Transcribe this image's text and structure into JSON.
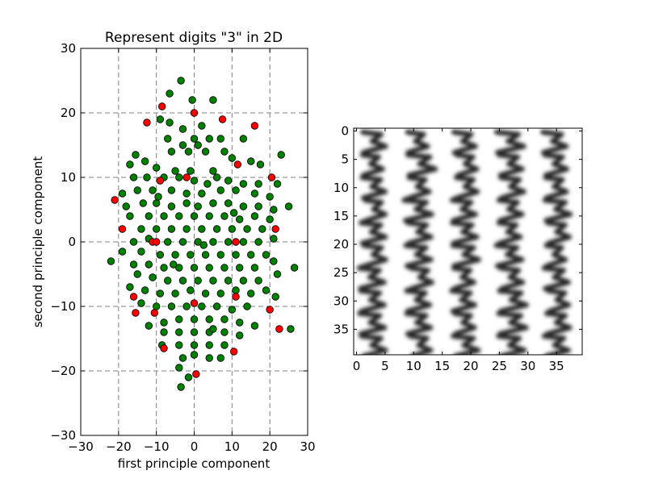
{
  "chart_data": [
    {
      "type": "scatter",
      "title": "Represent digits \"3\" in 2D",
      "xlabel": "first principle component",
      "ylabel": "second principle component",
      "xlim": [
        -30,
        30
      ],
      "ylim": [
        -30,
        30
      ],
      "xticks": [
        "−30",
        "−20",
        "−10",
        "0",
        "10",
        "20",
        "30"
      ],
      "yticks": [
        "−30",
        "−20",
        "−10",
        "0",
        "10",
        "20",
        "30"
      ],
      "grid": true,
      "colors": {
        "green": "#008000",
        "red": "#ff0000",
        "grid": "#808080"
      },
      "red_points": [
        [
          -8.5,
          21
        ],
        [
          0,
          20
        ],
        [
          7.5,
          19
        ],
        [
          -12.5,
          18.5
        ],
        [
          16,
          18
        ],
        [
          -21,
          6.5
        ],
        [
          -19,
          2
        ],
        [
          -9,
          9.5
        ],
        [
          -2,
          10
        ],
        [
          11.5,
          12
        ],
        [
          20.5,
          10
        ],
        [
          21.5,
          2
        ],
        [
          -11,
          0
        ],
        [
          -10,
          0
        ],
        [
          11,
          0
        ],
        [
          -16,
          -8.5
        ],
        [
          -15.5,
          -11
        ],
        [
          -10.5,
          -11
        ],
        [
          -8,
          -16.5
        ],
        [
          0,
          -9.5
        ],
        [
          11,
          -8.5
        ],
        [
          20,
          -10.5
        ],
        [
          22.5,
          -13.5
        ],
        [
          10.5,
          -17
        ],
        [
          0.5,
          -20.5
        ]
      ],
      "green_points": [
        [
          -6.5,
          23
        ],
        [
          -3.5,
          25
        ],
        [
          5,
          22
        ],
        [
          -0.5,
          22
        ],
        [
          2,
          18
        ],
        [
          -9,
          19
        ],
        [
          -6.5,
          18.5
        ],
        [
          -3,
          17.5
        ],
        [
          -7,
          16
        ],
        [
          0,
          16
        ],
        [
          4,
          16
        ],
        [
          7,
          16
        ],
        [
          13,
          16
        ],
        [
          1,
          15
        ],
        [
          -3,
          15
        ],
        [
          -1.5,
          14
        ],
        [
          -6,
          14
        ],
        [
          3,
          14
        ],
        [
          8,
          14
        ],
        [
          -15.5,
          13.5
        ],
        [
          -13,
          12.5
        ],
        [
          -17,
          12
        ],
        [
          -10,
          11.5
        ],
        [
          -5,
          11
        ],
        [
          -1,
          11
        ],
        [
          5,
          11
        ],
        [
          10,
          13
        ],
        [
          15,
          12.5
        ],
        [
          17.5,
          12
        ],
        [
          23,
          13.5
        ],
        [
          -16,
          10
        ],
        [
          -12.5,
          10
        ],
        [
          -8,
          10
        ],
        [
          -4,
          10
        ],
        [
          0,
          9.5
        ],
        [
          6,
          10
        ],
        [
          9,
          9.5
        ],
        [
          13,
          9
        ],
        [
          17,
          9
        ],
        [
          22,
          9
        ],
        [
          -19,
          7.5
        ],
        [
          -15,
          8
        ],
        [
          -11,
          8
        ],
        [
          -6,
          8
        ],
        [
          -2,
          7.5
        ],
        [
          2,
          7.5
        ],
        [
          7,
          8
        ],
        [
          11,
          8
        ],
        [
          16,
          7.5
        ],
        [
          20,
          7
        ],
        [
          -18,
          5.5
        ],
        [
          -13.5,
          6
        ],
        [
          -10,
          6
        ],
        [
          -6,
          5.5
        ],
        [
          -2,
          6
        ],
        [
          1,
          5.5
        ],
        [
          5,
          6
        ],
        [
          9,
          6
        ],
        [
          13,
          5.5
        ],
        [
          17,
          5.5
        ],
        [
          21,
          5
        ],
        [
          25,
          5.5
        ],
        [
          -17,
          4
        ],
        [
          -12,
          4
        ],
        [
          -8,
          4
        ],
        [
          -4,
          4
        ],
        [
          0,
          4
        ],
        [
          4,
          4
        ],
        [
          8,
          4
        ],
        [
          12,
          3.5
        ],
        [
          16,
          4
        ],
        [
          20,
          3.5
        ],
        [
          -14,
          2
        ],
        [
          -10,
          2
        ],
        [
          -6,
          2
        ],
        [
          -2,
          2
        ],
        [
          2,
          2
        ],
        [
          6,
          2
        ],
        [
          10,
          2
        ],
        [
          14,
          2
        ],
        [
          18,
          2
        ],
        [
          -16,
          0
        ],
        [
          -12,
          0.5
        ],
        [
          -7,
          0
        ],
        [
          -3,
          0
        ],
        [
          1,
          0
        ],
        [
          5,
          0
        ],
        [
          9,
          0
        ],
        [
          13,
          0
        ],
        [
          17,
          0
        ],
        [
          21,
          0.5
        ],
        [
          -19,
          -1.5
        ],
        [
          -14,
          -1.5
        ],
        [
          -9,
          -2
        ],
        [
          -5,
          -2
        ],
        [
          -1,
          -2
        ],
        [
          3,
          -2
        ],
        [
          7,
          -2
        ],
        [
          11,
          -2
        ],
        [
          15,
          -2
        ],
        [
          19,
          -2
        ],
        [
          -22,
          -3
        ],
        [
          -16,
          -3.5
        ],
        [
          -12,
          -3.5
        ],
        [
          -8,
          -4
        ],
        [
          -4,
          -4
        ],
        [
          0,
          -4
        ],
        [
          4,
          -4
        ],
        [
          8,
          -4
        ],
        [
          12,
          -4
        ],
        [
          16,
          -4
        ],
        [
          21,
          -3
        ],
        [
          -15,
          -5
        ],
        [
          -11,
          -5.5
        ],
        [
          -7,
          -6
        ],
        [
          -3,
          -6
        ],
        [
          1,
          -6
        ],
        [
          5,
          -6
        ],
        [
          9,
          -6
        ],
        [
          13,
          -6
        ],
        [
          17,
          -6
        ],
        [
          22,
          -5
        ],
        [
          26.5,
          -4
        ],
        [
          -17,
          -7
        ],
        [
          -13,
          -7.5
        ],
        [
          -9,
          -8
        ],
        [
          -5,
          -8
        ],
        [
          -1,
          -7.5
        ],
        [
          3,
          -8
        ],
        [
          7,
          -8
        ],
        [
          11,
          -7.5
        ],
        [
          15,
          -8
        ],
        [
          19,
          -7.5
        ],
        [
          -14,
          -9.5
        ],
        [
          -10,
          -10
        ],
        [
          -6,
          -10
        ],
        [
          -2,
          -10
        ],
        [
          2,
          -10
        ],
        [
          6,
          -10
        ],
        [
          10,
          -10.5
        ],
        [
          14,
          -10
        ],
        [
          21.5,
          -8.5
        ],
        [
          -12,
          -13
        ],
        [
          -8,
          -12.5
        ],
        [
          -4,
          -12
        ],
        [
          0,
          -12
        ],
        [
          4,
          -12
        ],
        [
          8,
          -12
        ],
        [
          12,
          -12.5
        ],
        [
          16,
          -13
        ],
        [
          -8,
          -14
        ],
        [
          -4,
          -14
        ],
        [
          0,
          -14
        ],
        [
          4,
          -14
        ],
        [
          8,
          -14
        ],
        [
          12,
          -14.5
        ],
        [
          -8.5,
          -16
        ],
        [
          -4,
          -16
        ],
        [
          0,
          -16
        ],
        [
          4,
          -16
        ],
        [
          8,
          -16
        ],
        [
          -3,
          -18
        ],
        [
          0,
          -17.5
        ],
        [
          4,
          -18
        ],
        [
          7,
          -18
        ],
        [
          -4,
          -19.5
        ],
        [
          -1.5,
          -21
        ],
        [
          -3.5,
          -22.5
        ],
        [
          25.5,
          -13.5
        ],
        [
          5,
          -13.5
        ],
        [
          -5.5,
          -3.5
        ],
        [
          2.5,
          -0.5
        ],
        [
          10.5,
          4.5
        ],
        [
          -9.5,
          7
        ],
        [
          3.5,
          9
        ]
      ]
    },
    {
      "type": "heatmap",
      "xticks": [
        "0",
        "5",
        "10",
        "15",
        "20",
        "25",
        "30",
        "35"
      ],
      "yticks": [
        "0",
        "5",
        "10",
        "15",
        "20",
        "25",
        "30",
        "35"
      ],
      "xlim": [
        0,
        40
      ],
      "ylim": [
        0,
        40
      ],
      "colormap": "grayscale",
      "stroke_columns": [
        3,
        11,
        19,
        27,
        35
      ],
      "description": "five vertical rows of stacked handwritten digit 3 images"
    }
  ]
}
